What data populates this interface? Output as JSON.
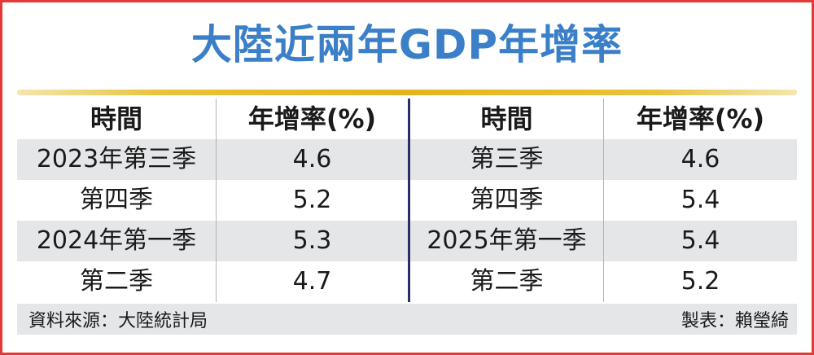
{
  "title": "大陸近兩年GDP年增率",
  "table": {
    "headers": [
      "時間",
      "年增率(%)",
      "時間",
      "年增率(%)"
    ],
    "rows": [
      [
        "2023年第三季",
        "4.6",
        "第三季",
        "4.6"
      ],
      [
        "第四季",
        "5.2",
        "第四季",
        "5.4"
      ],
      [
        "2024年第一季",
        "5.3",
        "2025年第一季",
        "5.4"
      ],
      [
        "第二季",
        "4.7",
        "第二季",
        "5.2"
      ]
    ]
  },
  "footer": {
    "source": "資料來源：大陸統計局",
    "credit": "製表：賴瑩綺"
  },
  "colors": {
    "title": "#3a7fc7",
    "border": "#e53935",
    "gold_rule": "#e3b41f",
    "band": "#e4e6e8",
    "divider": "#2b2f6b"
  }
}
